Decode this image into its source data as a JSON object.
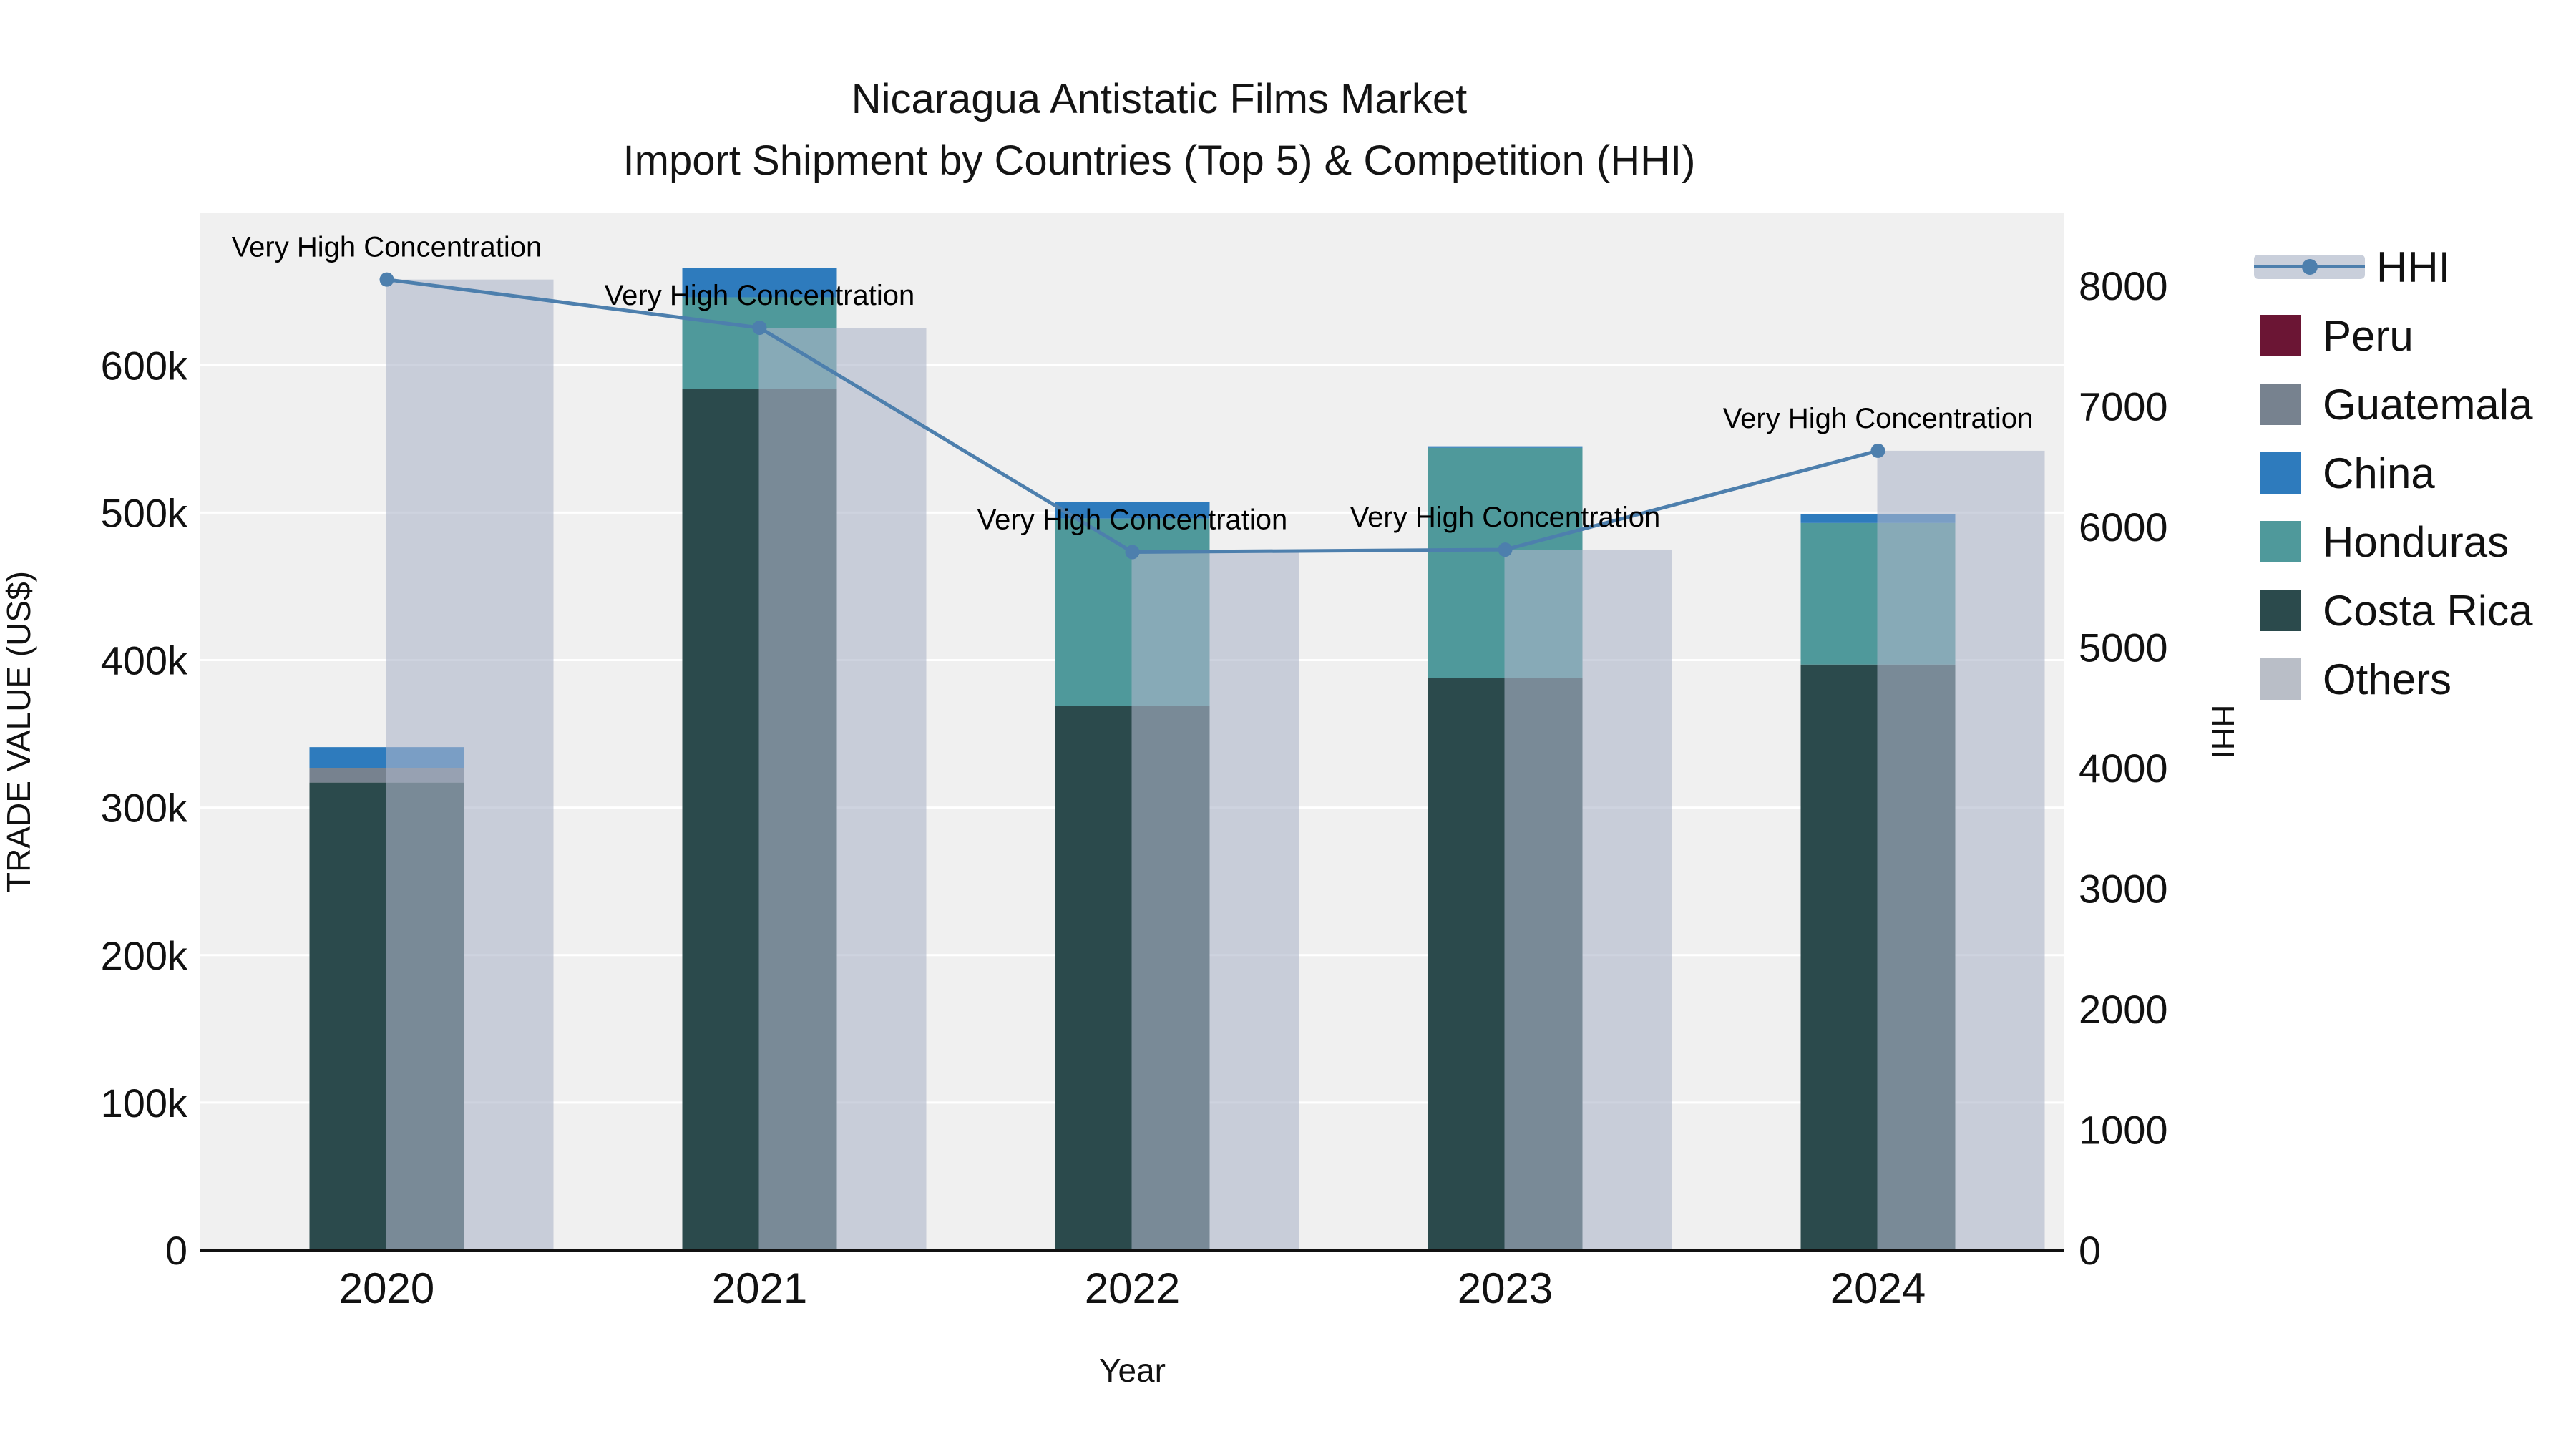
{
  "title": {
    "line1": "Nicaragua Antistatic Films Market",
    "line2": "Import Shipment by Countries (Top 5) & Competition (HHI)"
  },
  "chart_data": {
    "type": "bar+line",
    "x_title": "Year",
    "y_left_title": "TRADE VALUE (US$)",
    "y_right_title": "HHI",
    "categories": [
      "2020",
      "2021",
      "2022",
      "2023",
      "2024"
    ],
    "y_left_ticks": [
      "0",
      "100k",
      "200k",
      "300k",
      "400k",
      "500k",
      "600k"
    ],
    "y_left_tick_values": [
      0,
      100000,
      200000,
      300000,
      400000,
      500000,
      600000
    ],
    "y_left_max": 703000,
    "y_right_ticks": [
      "0",
      "1000",
      "2000",
      "3000",
      "4000",
      "5000",
      "6000",
      "7000",
      "8000"
    ],
    "y_right_tick_values": [
      0,
      1000,
      2000,
      3000,
      4000,
      5000,
      6000,
      7000,
      8000
    ],
    "y_right_max": 8600,
    "grid": "horizontal-white-on-gray",
    "plot_background": "#f0f0f0",
    "stack_order": [
      "Costa Rica",
      "Honduras",
      "Guatemala",
      "China",
      "Peru",
      "Others"
    ],
    "series": [
      {
        "name": "Costa Rica",
        "color": "#2b4a4c",
        "values": [
          317000,
          584000,
          369000,
          388000,
          397000
        ]
      },
      {
        "name": "Honduras",
        "color": "#4f999b",
        "values": [
          0,
          62000,
          127000,
          156000,
          96000
        ]
      },
      {
        "name": "Guatemala",
        "color": "#77828f",
        "values": [
          10000,
          0,
          0,
          0,
          0
        ]
      },
      {
        "name": "China",
        "color": "#2e7bbd",
        "values": [
          14000,
          20000,
          11000,
          1000,
          6000
        ]
      },
      {
        "name": "Peru",
        "color": "#6b1534",
        "values": [
          0,
          0,
          0,
          0,
          0
        ]
      },
      {
        "name": "Others",
        "color": "#b9bec7",
        "values": [
          0,
          0,
          0,
          0,
          0
        ]
      }
    ],
    "hhi": {
      "name": "HHI",
      "line_color": "#4d7fad",
      "bar_color": "rgba(173,182,202,0.6)",
      "values": [
        8050,
        7650,
        5790,
        5810,
        6630
      ]
    },
    "annotations": [
      {
        "x": "2020",
        "text": "Very High Concentration"
      },
      {
        "x": "2021",
        "text": "Very High Concentration"
      },
      {
        "x": "2022",
        "text": "Very High Concentration"
      },
      {
        "x": "2023",
        "text": "Very High Concentration"
      },
      {
        "x": "2024",
        "text": "Very High Concentration"
      }
    ],
    "legend_position": "right"
  },
  "legend": {
    "items": [
      {
        "label": "HHI",
        "type": "line"
      },
      {
        "label": "Peru",
        "type": "swatch",
        "color": "#6b1534"
      },
      {
        "label": "Guatemala",
        "type": "swatch",
        "color": "#77828f"
      },
      {
        "label": "China",
        "type": "swatch",
        "color": "#2e7bbd"
      },
      {
        "label": "Honduras",
        "type": "swatch",
        "color": "#4f999b"
      },
      {
        "label": "Costa Rica",
        "type": "swatch",
        "color": "#2b4a4c"
      },
      {
        "label": "Others",
        "type": "swatch",
        "color": "#b9bec7"
      }
    ]
  }
}
